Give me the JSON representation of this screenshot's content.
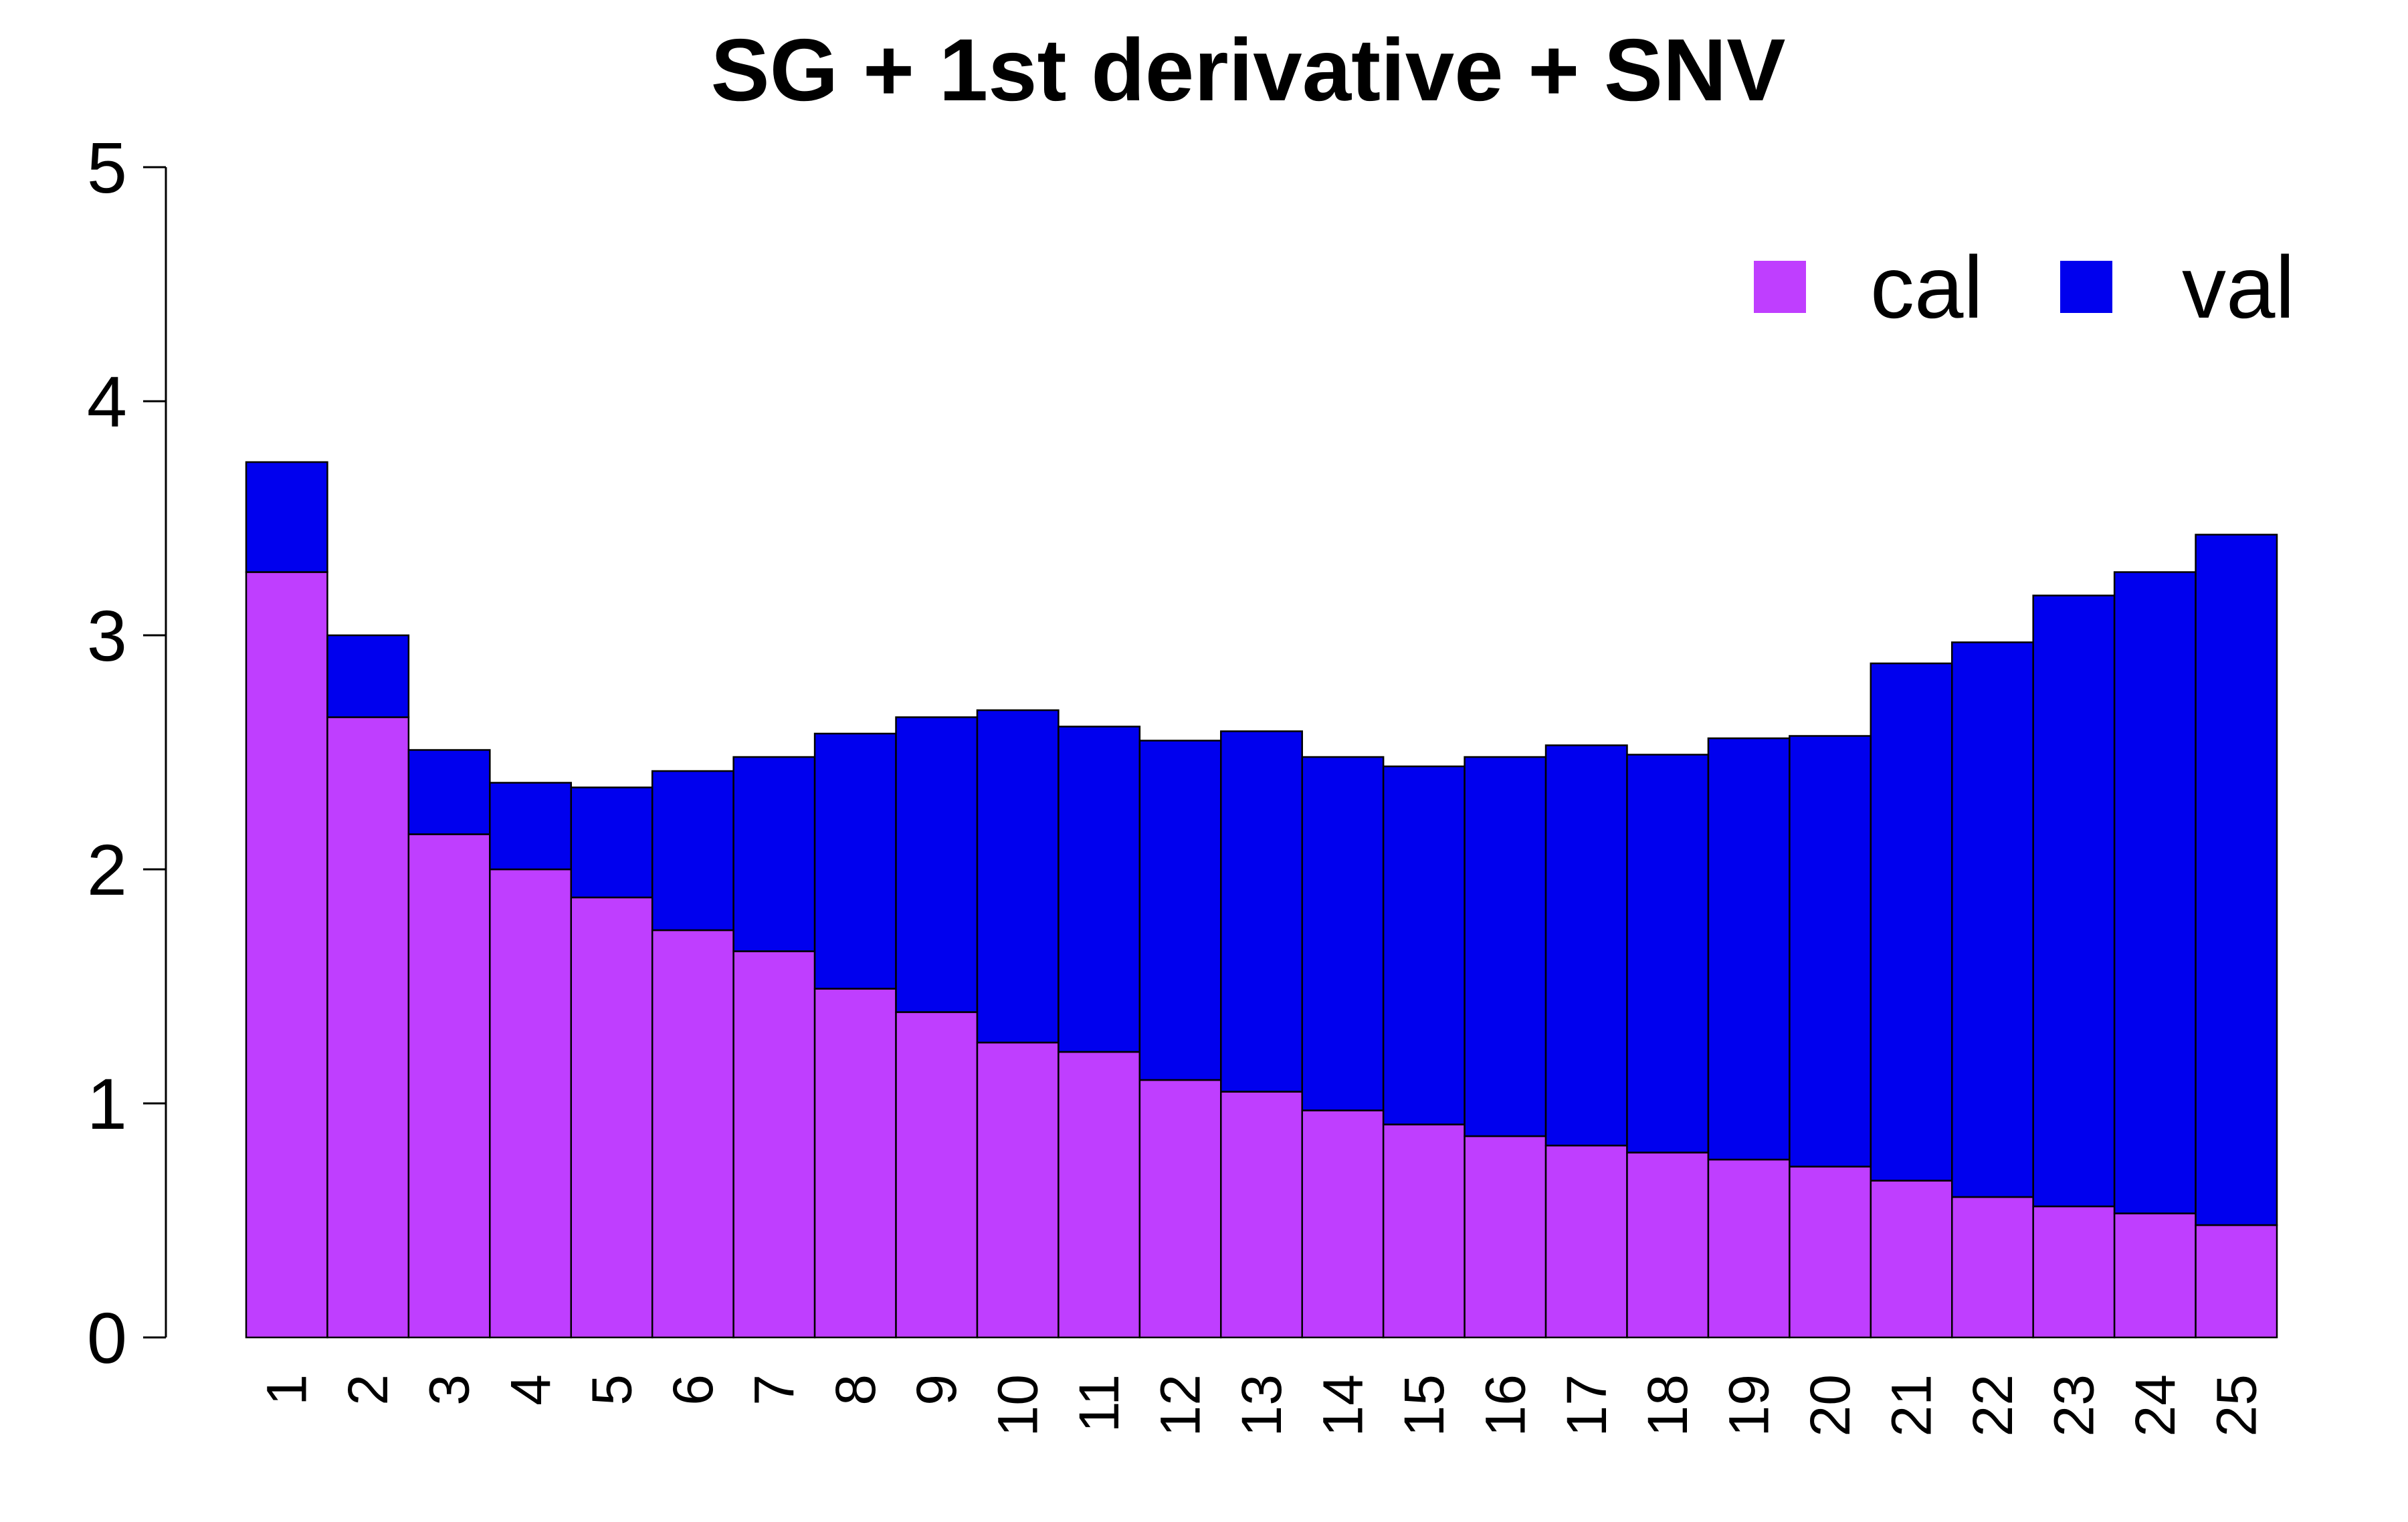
{
  "chart_data": {
    "type": "bar",
    "stacked": true,
    "title": "SG + 1st derivative + SNV",
    "xlabel": "",
    "ylabel": "",
    "categories": [
      "1",
      "2",
      "3",
      "4",
      "5",
      "6",
      "7",
      "8",
      "9",
      "10",
      "11",
      "12",
      "13",
      "14",
      "15",
      "16",
      "17",
      "18",
      "19",
      "20",
      "21",
      "22",
      "23",
      "24",
      "25"
    ],
    "ylim": [
      0,
      5
    ],
    "yticks": [
      "0",
      "1",
      "2",
      "3",
      "4",
      "5"
    ],
    "series": [
      {
        "name": "cal",
        "color": "#bf3eff",
        "values": [
          3.27,
          2.65,
          2.15,
          2.0,
          1.88,
          1.74,
          1.65,
          1.49,
          1.39,
          1.26,
          1.22,
          1.1,
          1.05,
          0.97,
          0.91,
          0.86,
          0.82,
          0.79,
          0.76,
          0.73,
          0.67,
          0.6,
          0.56,
          0.53,
          0.48
        ]
      },
      {
        "name": "val",
        "color": "#0000ee",
        "values": [
          0.47,
          0.35,
          0.36,
          0.37,
          0.47,
          0.68,
          0.83,
          1.09,
          1.26,
          1.42,
          1.39,
          1.45,
          1.54,
          1.51,
          1.53,
          1.62,
          1.71,
          1.7,
          1.8,
          1.84,
          2.21,
          2.37,
          2.61,
          2.74,
          2.95
        ]
      }
    ],
    "legend": {
      "position": "top-right",
      "entries": [
        "cal",
        "val"
      ]
    },
    "grid": false
  }
}
